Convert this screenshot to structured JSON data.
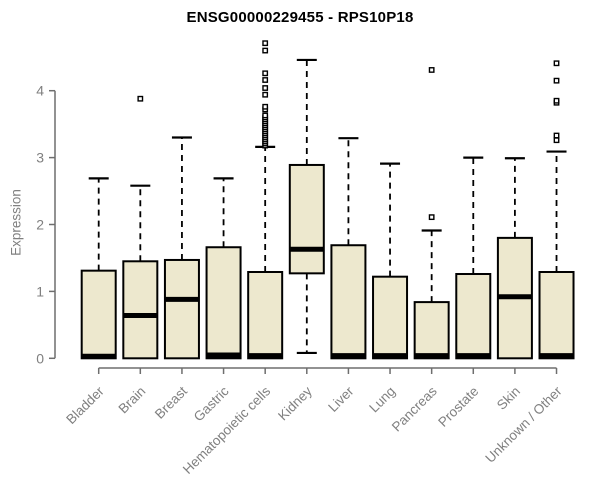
{
  "colors": {
    "box_fill": "#EDE8CE",
    "box_stroke": "#000000",
    "median": "#000000",
    "whisker": "#000000",
    "axis_line": "#6e6e6e",
    "tick_label": "#808080",
    "axis_title": "#808080",
    "title": "#000000",
    "outlier_fill": "#ffffff",
    "background": "#ffffff"
  },
  "chart_data": {
    "type": "boxplot",
    "title": "ENSG00000229455 - RPS10P18",
    "xlabel": "",
    "ylabel": "Expression",
    "ylim": [
      0,
      4.75
    ],
    "yticks": [
      0,
      1,
      2,
      3,
      4
    ],
    "grid": false,
    "legend": null,
    "categories": [
      "Bladder",
      "Brain",
      "Breast",
      "Gastric",
      "Hematopoietic cells",
      "Kidney",
      "Liver",
      "Lung",
      "Pancreas",
      "Prostate",
      "Skin",
      "Unknown / Other"
    ],
    "series": [
      {
        "name": "Bladder",
        "low": 0,
        "q1": 0,
        "median": 0.03,
        "q3": 1.31,
        "high": 2.69,
        "outliers": []
      },
      {
        "name": "Brain",
        "low": 0,
        "q1": 0,
        "median": 0.64,
        "q3": 1.45,
        "high": 2.58,
        "outliers": [
          3.88
        ]
      },
      {
        "name": "Breast",
        "low": 0,
        "q1": 0,
        "median": 0.88,
        "q3": 1.47,
        "high": 3.3,
        "outliers": []
      },
      {
        "name": "Gastric",
        "low": 0,
        "q1": 0,
        "median": 0.05,
        "q3": 1.66,
        "high": 2.69,
        "outliers": []
      },
      {
        "name": "Hematopoietic cells",
        "low": 0,
        "q1": 0,
        "median": 0.04,
        "q3": 1.29,
        "high": 3.16,
        "outliers": [
          3.18,
          3.21,
          3.24,
          3.27,
          3.3,
          3.33,
          3.36,
          3.39,
          3.42,
          3.45,
          3.48,
          3.51,
          3.54,
          3.57,
          3.6,
          3.63,
          3.72,
          3.76,
          3.94,
          4.04,
          4.16,
          4.26,
          4.6,
          4.71
        ]
      },
      {
        "name": "Kidney",
        "low": 0.08,
        "q1": 1.27,
        "median": 1.63,
        "q3": 2.89,
        "high": 4.46,
        "outliers": []
      },
      {
        "name": "Liver",
        "low": 0,
        "q1": 0,
        "median": 0.04,
        "q3": 1.69,
        "high": 3.29,
        "outliers": []
      },
      {
        "name": "Lung",
        "low": 0,
        "q1": 0,
        "median": 0.04,
        "q3": 1.22,
        "high": 2.91,
        "outliers": []
      },
      {
        "name": "Pancreas",
        "low": 0,
        "q1": 0,
        "median": 0.04,
        "q3": 0.84,
        "high": 1.91,
        "outliers": [
          2.11,
          4.31
        ]
      },
      {
        "name": "Prostate",
        "low": 0,
        "q1": 0,
        "median": 0.04,
        "q3": 1.26,
        "high": 3.0,
        "outliers": []
      },
      {
        "name": "Skin",
        "low": 0,
        "q1": 0,
        "median": 0.92,
        "q3": 1.8,
        "high": 2.99,
        "outliers": []
      },
      {
        "name": "Unknown / Other",
        "low": 0,
        "q1": 0,
        "median": 0.04,
        "q3": 1.29,
        "high": 3.09,
        "outliers": [
          3.26,
          3.33,
          3.82,
          3.85,
          4.15,
          4.41
        ]
      }
    ]
  }
}
